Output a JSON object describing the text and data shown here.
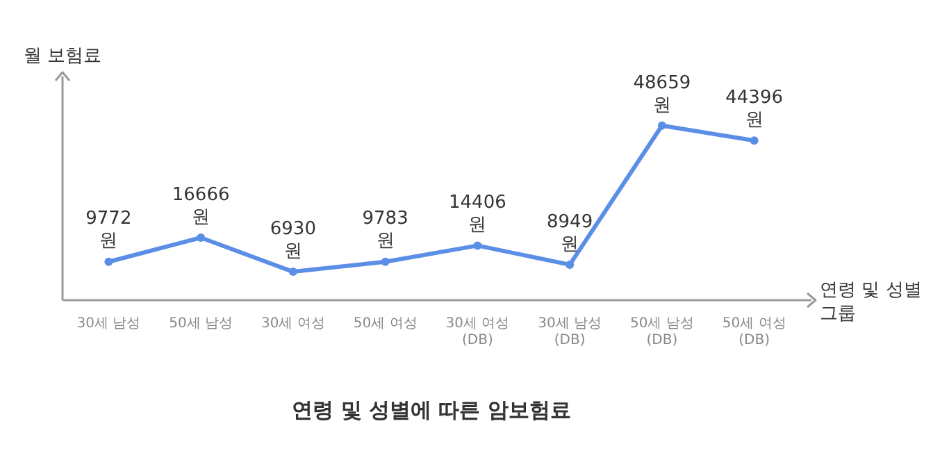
{
  "chart_data": {
    "type": "line",
    "title": "연령 및 성별에 따른 암보험료",
    "xlabel": "연령 및 성별 그룹",
    "ylabel": "월 보험료",
    "categories": [
      "30세 남성",
      "50세 남성",
      "30세 여성",
      "50세 여성",
      "30세 여성\n(DB)",
      "30세 남성\n(DB)",
      "50세 남성\n(DB)",
      "50세 여성\n(DB)"
    ],
    "values": [
      9772,
      16666,
      6930,
      9783,
      14406,
      8949,
      48659,
      44396
    ],
    "value_labels": [
      "9772\n원",
      "16666\n원",
      "6930\n원",
      "9783\n원",
      "14406\n원",
      "8949\n원",
      "48659\n원",
      "44396\n원"
    ],
    "color": "#5b8ee6",
    "marker": "circle",
    "line_style": "solid",
    "grid": false,
    "legend": false,
    "tick_labels": "x"
  }
}
